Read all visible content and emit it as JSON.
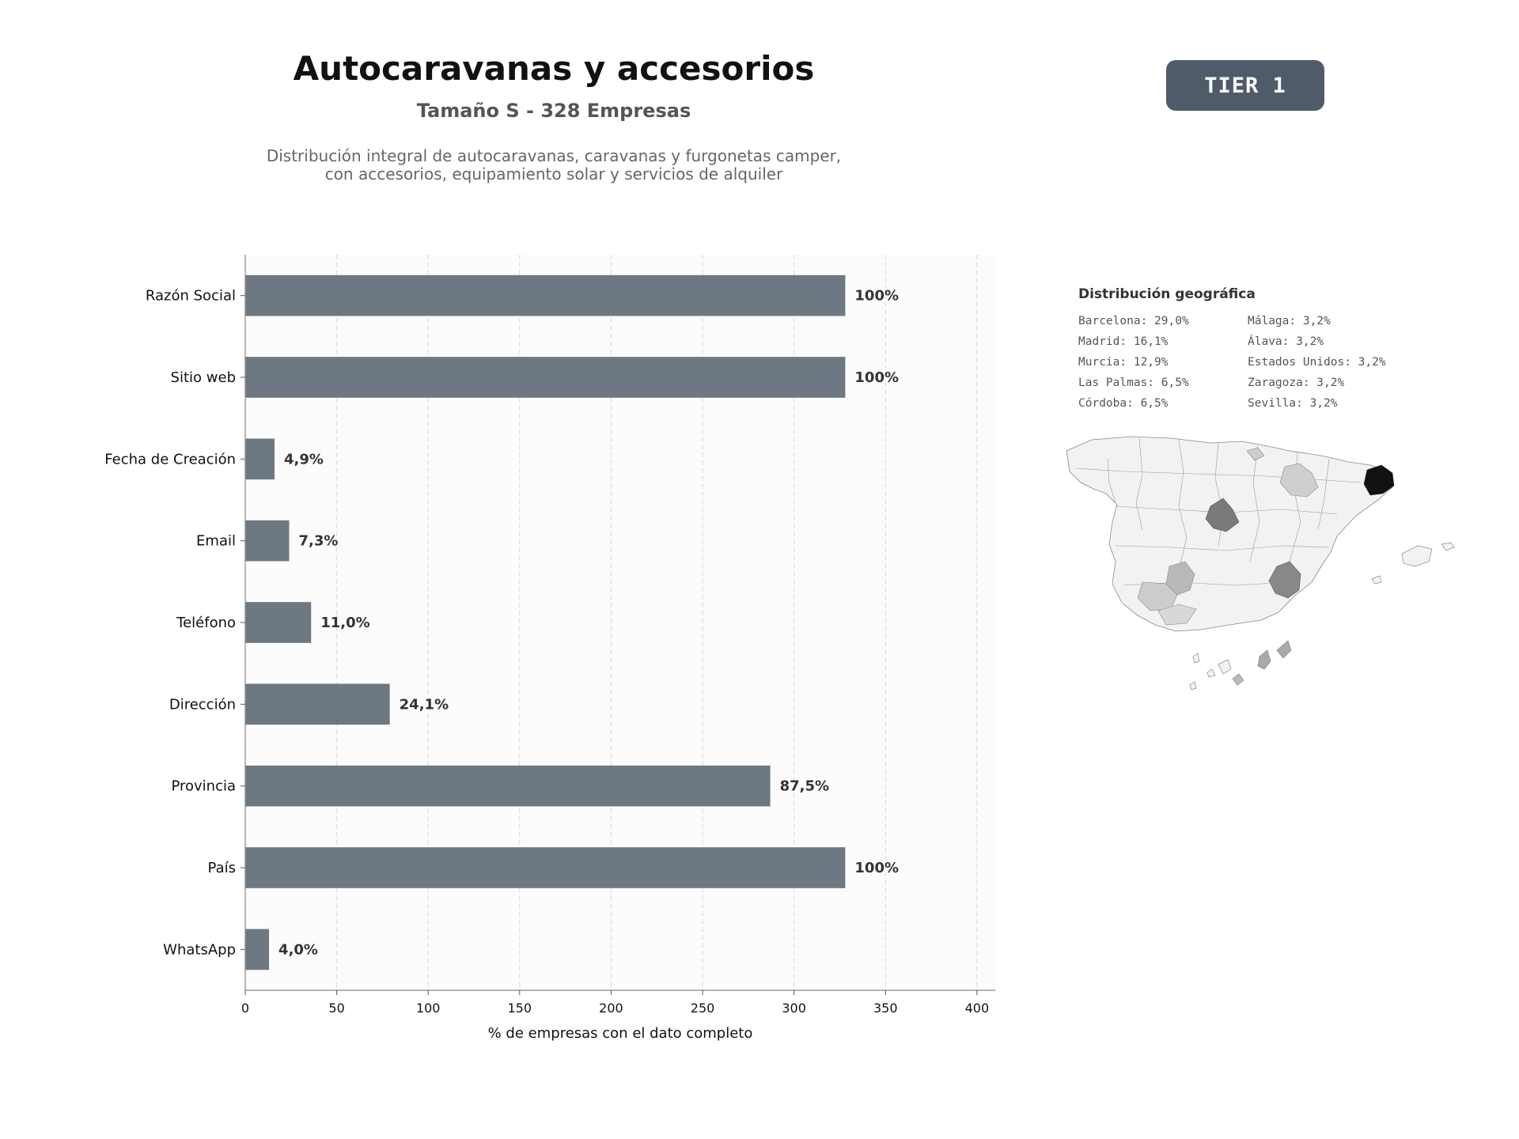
{
  "header": {
    "title": "Autocaravanas y accesorios",
    "subtitle": "Tamaño S - 328 Empresas",
    "description_line1": "Distribución integral de autocaravanas, caravanas y furgonetas camper,",
    "description_line2": "con accesorios, equipamiento solar y servicios de alquiler"
  },
  "badge": {
    "label": "TIER 1",
    "color": "#4f5b69"
  },
  "chart_data": {
    "type": "bar",
    "orientation": "horizontal",
    "categories": [
      "Razón Social",
      "Sitio web",
      "Fecha de Creación",
      "Email",
      "Teléfono",
      "Dirección",
      "Provincia",
      "País",
      "WhatsApp"
    ],
    "values": [
      328,
      328,
      16,
      24,
      36,
      79,
      287,
      328,
      13
    ],
    "value_labels": [
      "100%",
      "100%",
      "4,9%",
      "7,3%",
      "11,0%",
      "24,1%",
      "87,5%",
      "100%",
      "4,0%"
    ],
    "xlabel": "% de empresas con el dato completo",
    "ylabel": "",
    "xlim": [
      0,
      410
    ],
    "xticks": [
      0,
      50,
      100,
      150,
      200,
      250,
      300,
      350,
      400
    ],
    "grid": "vertical dashed",
    "bar_color": "#6e7882"
  },
  "geo": {
    "title": "Distribución geográfica",
    "items": [
      "Barcelona: 29,0%",
      "Málaga: 3,2%",
      "Madrid: 16,1%",
      "Álava: 3,2%",
      "Murcia: 12,9%",
      "Estados Unidos: 3,2%",
      "Las Palmas: 6,5%",
      "Zaragoza: 3,2%",
      "Córdoba: 6,5%",
      "Sevilla: 3,2%"
    ]
  }
}
